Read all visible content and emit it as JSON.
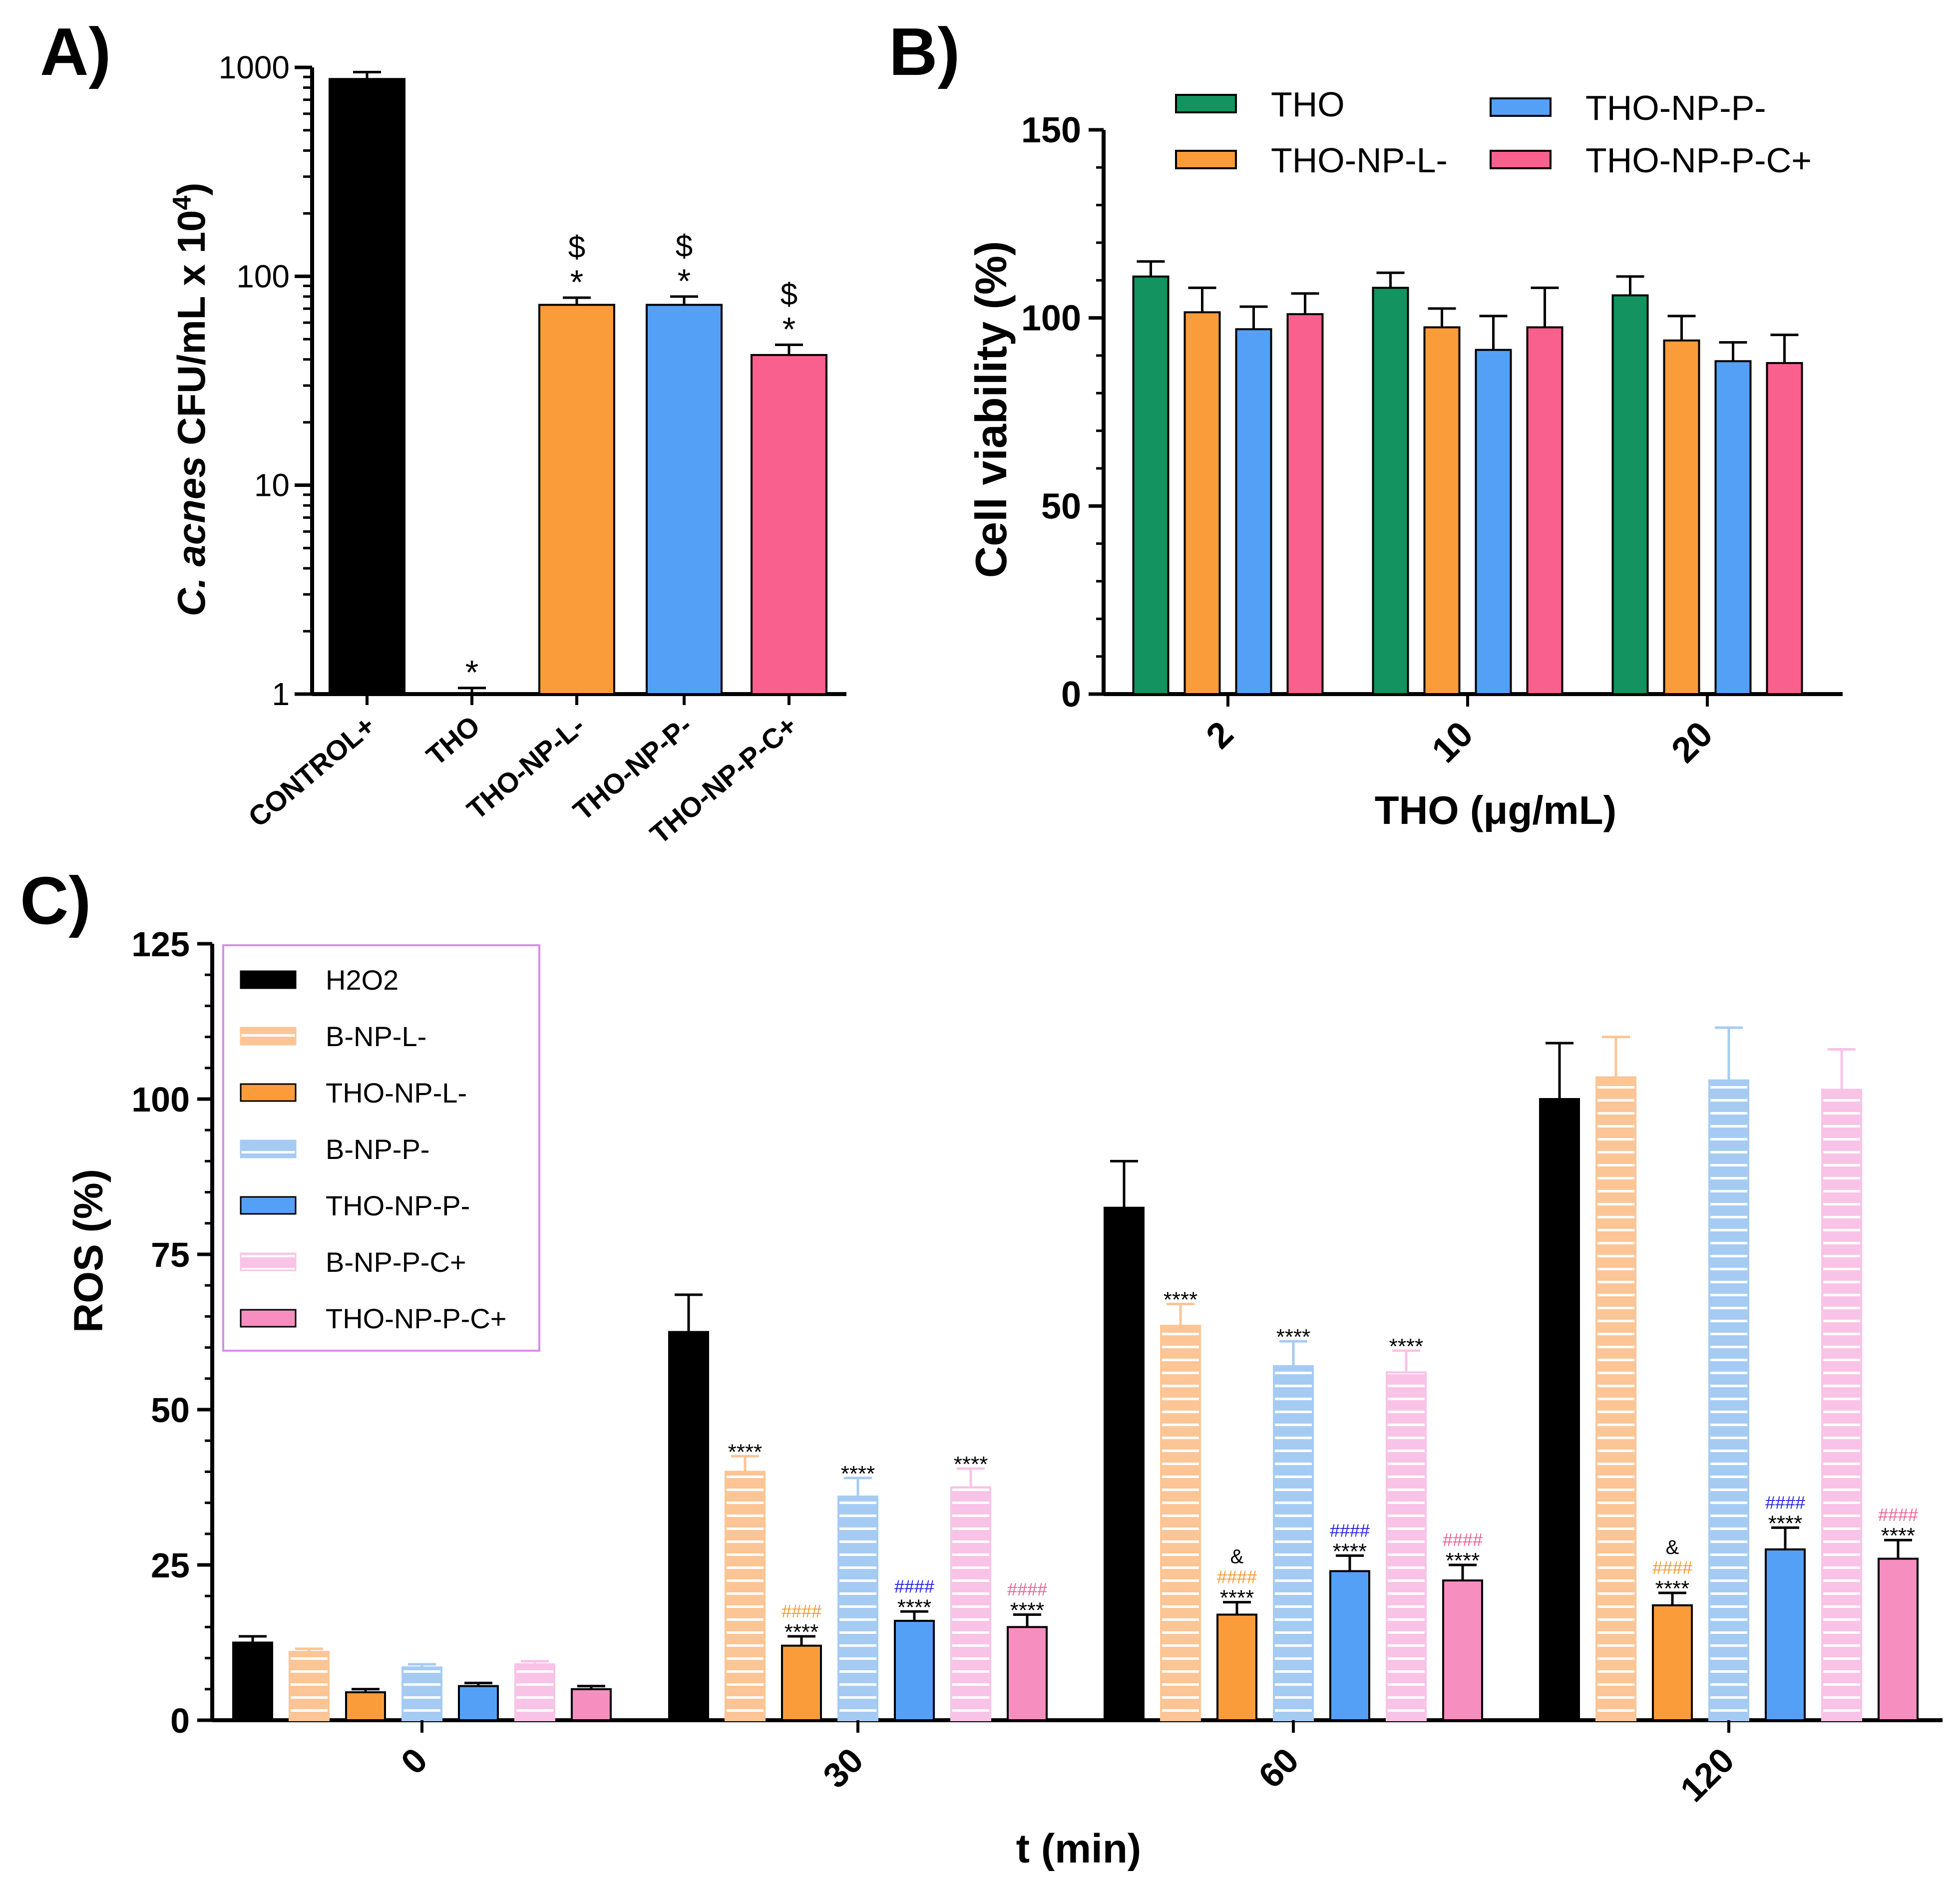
{
  "panels": {
    "a": "A)",
    "b": "B)",
    "c": "C)"
  },
  "colors": {
    "black": "#000000",
    "green": "#12935f",
    "orange": "#fb9c3b",
    "blue": "#55a0f7",
    "red": "#f9608e",
    "light_orange": "#fbc596",
    "light_blue": "#a6cbf3",
    "light_pink": "#f8c3e6",
    "pink": "#f68fc0",
    "legend_border": "#d58ee8",
    "hash_orange": "#f59a32",
    "hash_blue": "#2222dd",
    "hash_pink": "#ef5f95"
  },
  "chart_data": [
    {
      "type": "bar",
      "panel": "A",
      "yscale": "log",
      "ylabel_italic": "C. acnes",
      "ylabel_rest": " CFU/mL x 10",
      "ylabel_sup": "4",
      "ylabel_close": ")",
      "ylim": [
        1,
        1000
      ],
      "yticks": [
        "1",
        "10",
        "100",
        "1000"
      ],
      "categories": [
        "CONTROL+",
        "THO",
        "THO-NP-L-",
        "THO-NP-P-",
        "THO-NP-P-C+"
      ],
      "values": [
        880,
        1,
        73,
        73,
        42
      ],
      "errors": [
        950,
        1.07,
        79,
        80,
        47
      ],
      "star_labels": [
        "",
        "*",
        "*",
        "*",
        "*"
      ],
      "dollar_labels": [
        "",
        "",
        "$",
        "$",
        "$"
      ],
      "bar_colors": [
        "#000000",
        "#000000",
        "#fb9c3b",
        "#55a0f7",
        "#f9608e"
      ]
    },
    {
      "type": "bar",
      "panel": "B",
      "ylabel": "Cell viability (%)",
      "xlabel": "THO (μg/mL)",
      "ylim": [
        0,
        150
      ],
      "yticks": [
        "0",
        "50",
        "100",
        "150"
      ],
      "categories": [
        "2",
        "10",
        "20"
      ],
      "legend": [
        "THO",
        "THO-NP-P-",
        "THO-NP-L-",
        "THO-NP-P-C+"
      ],
      "series": [
        {
          "name": "THO",
          "color": "#12935f",
          "values": [
            111,
            108,
            106
          ],
          "errors": [
            115,
            112,
            111
          ]
        },
        {
          "name": "THO-NP-L-",
          "color": "#fb9c3b",
          "values": [
            101.5,
            97.5,
            94
          ],
          "errors": [
            108,
            102.5,
            100.5
          ]
        },
        {
          "name": "THO-NP-P-",
          "color": "#55a0f7",
          "values": [
            97,
            91.5,
            88.5
          ],
          "errors": [
            103,
            100.5,
            93.5
          ]
        },
        {
          "name": "THO-NP-P-C+",
          "color": "#f9608e",
          "values": [
            101,
            97.5,
            88
          ],
          "errors": [
            106.5,
            108,
            95.5
          ]
        }
      ]
    },
    {
      "type": "bar",
      "panel": "C",
      "ylabel": "ROS (%)",
      "xlabel": "t (min)",
      "ylim": [
        0,
        125
      ],
      "yticks": [
        "0",
        "25",
        "50",
        "75",
        "100",
        "125"
      ],
      "categories": [
        "0",
        "30",
        "60",
        "120"
      ],
      "series": [
        {
          "name": "H2O2",
          "color": "#000000",
          "striped": false,
          "values": [
            12.5,
            62.5,
            82.5,
            100
          ],
          "errors": [
            13.5,
            68.5,
            90,
            109
          ]
        },
        {
          "name": "B-NP-L-",
          "color": "#fbc596",
          "striped": true,
          "values": [
            11,
            40,
            63.5,
            103.5
          ],
          "errors": [
            11.5,
            42.5,
            67,
            110
          ]
        },
        {
          "name": "THO-NP-L-",
          "color": "#fb9c3b",
          "striped": false,
          "values": [
            4.5,
            12,
            17,
            18.5
          ],
          "errors": [
            5,
            13.5,
            19,
            20.5
          ]
        },
        {
          "name": "B-NP-P-",
          "color": "#a6cbf3",
          "striped": true,
          "values": [
            8.5,
            36,
            57,
            103
          ],
          "errors": [
            9,
            39,
            61,
            111.5
          ]
        },
        {
          "name": "THO-NP-P-",
          "color": "#55a0f7",
          "striped": false,
          "values": [
            5.5,
            16,
            24,
            27.5
          ],
          "errors": [
            6,
            17.5,
            26.5,
            31
          ]
        },
        {
          "name": "B-NP-P-C+",
          "color": "#f8c3e6",
          "striped": true,
          "values": [
            9,
            37.5,
            56,
            101.5
          ],
          "errors": [
            9.5,
            40.5,
            59.5,
            108
          ]
        },
        {
          "name": "THO-NP-P-C+",
          "color": "#f68fc0",
          "striped": false,
          "values": [
            5,
            15,
            22.5,
            26
          ],
          "errors": [
            5.5,
            17,
            25,
            29
          ]
        }
      ],
      "stars": [
        [
          "",
          "",
          "",
          "",
          "",
          "",
          ""
        ],
        [
          "",
          "****",
          "****",
          "****",
          "****",
          "****",
          "****"
        ],
        [
          "",
          "****",
          "****",
          "****",
          "****",
          "****",
          "****"
        ],
        [
          "",
          "",
          "****",
          "",
          "****",
          "",
          "****"
        ]
      ],
      "hashes": [
        [
          "",
          "",
          "",
          "",
          "",
          "",
          ""
        ],
        [
          "",
          "",
          "####",
          "",
          "####",
          "",
          "####"
        ],
        [
          "",
          "",
          "####",
          "",
          "####",
          "",
          "####"
        ],
        [
          "",
          "",
          "####",
          "",
          "####",
          "",
          "####"
        ]
      ],
      "amps": [
        [
          "",
          "",
          "",
          "",
          "",
          "",
          ""
        ],
        [
          "",
          "",
          "",
          "",
          "",
          "",
          ""
        ],
        [
          "",
          "",
          "&",
          "",
          "",
          "",
          ""
        ],
        [
          "",
          "",
          "&",
          "",
          "",
          "",
          ""
        ]
      ]
    }
  ]
}
